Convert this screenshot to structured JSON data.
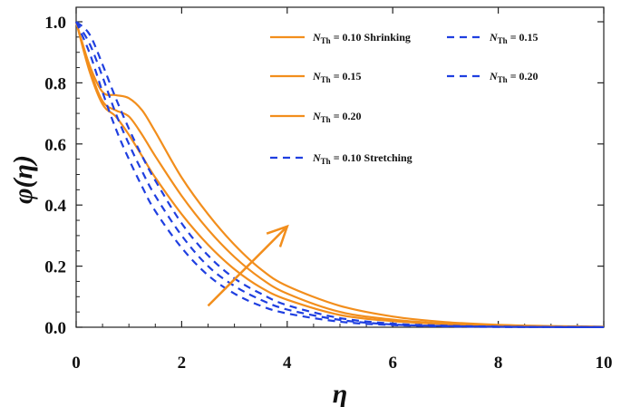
{
  "chart_data": {
    "type": "line",
    "xlabel": "η",
    "ylabel": "φ(η)",
    "xlim": [
      0,
      10
    ],
    "ylim": [
      0,
      1.0
    ],
    "xticks": [
      "0",
      "2",
      "4",
      "6",
      "8",
      "10"
    ],
    "yticks": [
      "0.0",
      "0.2",
      "0.4",
      "0.6",
      "0.8",
      "1.0"
    ],
    "x": [
      0,
      0.25,
      0.5,
      0.75,
      1,
      1.25,
      1.5,
      2,
      2.5,
      3,
      3.5,
      4,
      5,
      6,
      7,
      8,
      9,
      10
    ],
    "series": [
      {
        "name": "N_Th = 0.10 Shrinking",
        "group": "Shrinking",
        "style": "solid",
        "color": "#F28E1C",
        "values": [
          1.0,
          0.84,
          0.73,
          0.69,
          0.63,
          0.56,
          0.49,
          0.37,
          0.27,
          0.19,
          0.13,
          0.09,
          0.04,
          0.02,
          0.01,
          0.005,
          0.002,
          0.001
        ]
      },
      {
        "name": "N_Th = 0.15",
        "group": "Shrinking",
        "style": "solid",
        "color": "#F28E1C",
        "values": [
          1.0,
          0.85,
          0.74,
          0.71,
          0.69,
          0.63,
          0.56,
          0.43,
          0.32,
          0.23,
          0.16,
          0.11,
          0.05,
          0.025,
          0.012,
          0.006,
          0.003,
          0.001
        ]
      },
      {
        "name": "N_Th = 0.20",
        "group": "Shrinking",
        "style": "solid",
        "color": "#F28E1C",
        "values": [
          1.0,
          0.86,
          0.77,
          0.76,
          0.75,
          0.71,
          0.64,
          0.49,
          0.37,
          0.27,
          0.19,
          0.135,
          0.07,
          0.035,
          0.017,
          0.008,
          0.004,
          0.002
        ]
      },
      {
        "name": "N_Th = 0.10 Stretching",
        "group": "Stretching",
        "style": "dashed",
        "color": "#1F3FE0",
        "values": [
          1.0,
          0.9,
          0.77,
          0.65,
          0.55,
          0.46,
          0.38,
          0.26,
          0.17,
          0.11,
          0.07,
          0.045,
          0.018,
          0.007,
          0.003,
          0.001,
          0.0005,
          0.0002
        ]
      },
      {
        "name": "N_Th = 0.15",
        "group": "Stretching",
        "style": "dashed",
        "color": "#1F3FE0",
        "values": [
          1.0,
          0.93,
          0.82,
          0.7,
          0.6,
          0.51,
          0.43,
          0.3,
          0.2,
          0.135,
          0.09,
          0.058,
          0.024,
          0.009,
          0.004,
          0.0015,
          0.0006,
          0.0002
        ]
      },
      {
        "name": "N_Th = 0.20",
        "group": "Stretching",
        "style": "dashed",
        "color": "#1F3FE0",
        "values": [
          1.0,
          0.96,
          0.86,
          0.75,
          0.65,
          0.56,
          0.48,
          0.34,
          0.235,
          0.16,
          0.11,
          0.072,
          0.03,
          0.012,
          0.005,
          0.002,
          0.0008,
          0.0003
        ]
      }
    ],
    "legend": {
      "entries": [
        {
          "series": 0,
          "symbol": "N",
          "subscript": "Th",
          "text": " = 0.10 Shrinking"
        },
        {
          "series": 4,
          "symbol": "N",
          "subscript": "Th",
          "text": " = 0.15"
        },
        {
          "series": 1,
          "symbol": "N",
          "subscript": "Th",
          "text": " = 0.15"
        },
        {
          "series": 5,
          "symbol": "N",
          "subscript": "Th",
          "text": " = 0.20"
        },
        {
          "series": 2,
          "symbol": "N",
          "subscript": "Th",
          "text": " = 0.20"
        },
        {
          "series": 3,
          "symbol": "N",
          "subscript": "Th",
          "text": " = 0.10 Stretching"
        }
      ],
      "placement": "top-right"
    },
    "annotation": {
      "type": "arrow",
      "color": "#F28E1C",
      "meaning": "increasing N_Th",
      "from": [
        2.5,
        0.07
      ],
      "to": [
        4.0,
        0.33
      ]
    },
    "grid": false
  }
}
